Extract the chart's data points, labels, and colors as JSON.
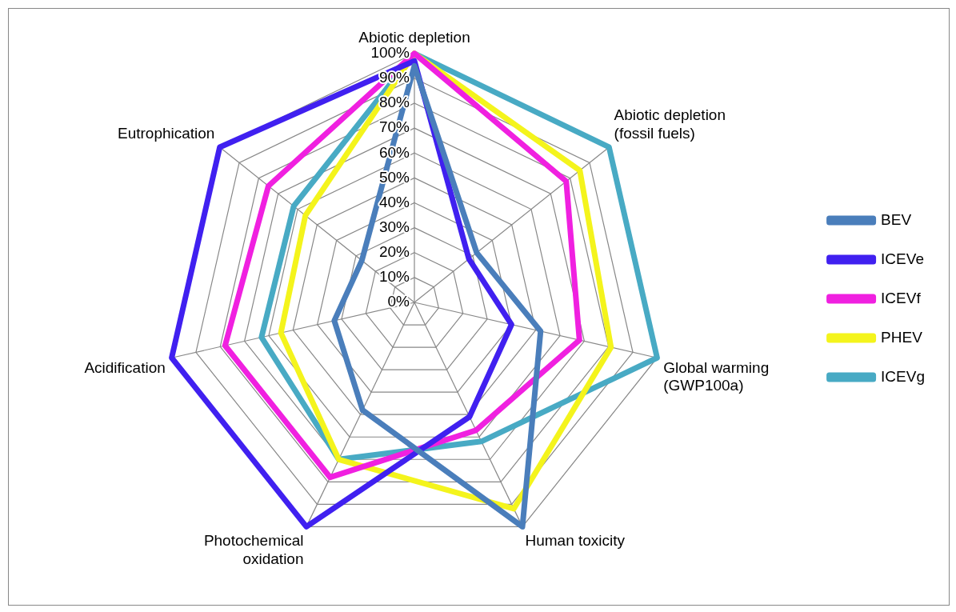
{
  "chart_data": {
    "type": "radar",
    "categories": [
      "Abiotic depletion",
      "Abiotic depletion (fossil fuels)",
      "Global warming (GWP100a)",
      "Human toxicity",
      "Photochemical oxidation",
      "Acidification",
      "Eutrophication"
    ],
    "series": [
      {
        "name": "BEV",
        "color": "#4a7ebb",
        "values": [
          95,
          32,
          52,
          100,
          48,
          33,
          27
        ]
      },
      {
        "name": "ICEVe",
        "color": "#4020f0",
        "values": [
          97,
          28,
          40,
          51,
          100,
          100,
          100
        ]
      },
      {
        "name": "ICEVf",
        "color": "#f020e0",
        "values": [
          100,
          78,
          68,
          57,
          78,
          78,
          75
        ]
      },
      {
        "name": "PHEV",
        "color": "#f4f41c",
        "values": [
          100,
          85,
          81,
          92,
          70,
          55,
          56
        ]
      },
      {
        "name": "ICEVg",
        "color": "#48aac4",
        "values": [
          100,
          100,
          100,
          62,
          70,
          63,
          62
        ]
      }
    ],
    "ylim": [
      0,
      100
    ],
    "yticks": [
      {
        "value": 0,
        "label": "0%"
      },
      {
        "value": 10,
        "label": "10%"
      },
      {
        "value": 20,
        "label": "20%"
      },
      {
        "value": 30,
        "label": "30%"
      },
      {
        "value": 40,
        "label": "40%"
      },
      {
        "value": 50,
        "label": "50%"
      },
      {
        "value": 60,
        "label": "60%"
      },
      {
        "value": 70,
        "label": "70%"
      },
      {
        "value": 80,
        "label": "80%"
      },
      {
        "value": 90,
        "label": "90%"
      },
      {
        "value": 100,
        "label": "100%"
      }
    ],
    "grid": true,
    "legend": "right",
    "marker": "none"
  }
}
